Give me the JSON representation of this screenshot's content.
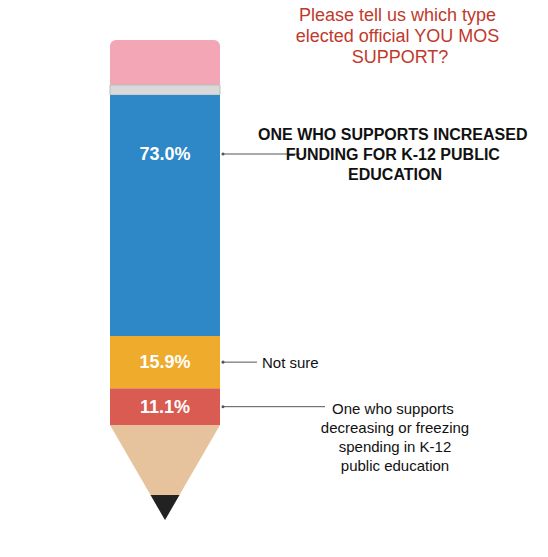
{
  "chart_data": {
    "type": "bar",
    "title": "Please tell us which type elected official YOU MOS SUPPORT?",
    "categories": [
      null
    ],
    "stacked": true,
    "data_labels": true,
    "tick_labels": false,
    "ylim": [
      0,
      100
    ],
    "series": [
      {
        "name": "One who supports decreasing or freezing spending in K-12 public education",
        "color": "#d95b52",
        "values": [
          11.1
        ],
        "value_labels": [
          "11.1%"
        ]
      },
      {
        "name": "Not sure",
        "color": "#eeab2c",
        "values": [
          15.9
        ],
        "value_labels": [
          "15.9%"
        ]
      },
      {
        "name": "ONE WHO SUPPORTS INCREASED FUNDING FOR K-12 PUBLIC EDUCATION",
        "color": "#2e87c6",
        "values": [
          73.0
        ],
        "value_labels": [
          "73.0%"
        ]
      }
    ]
  }
}
